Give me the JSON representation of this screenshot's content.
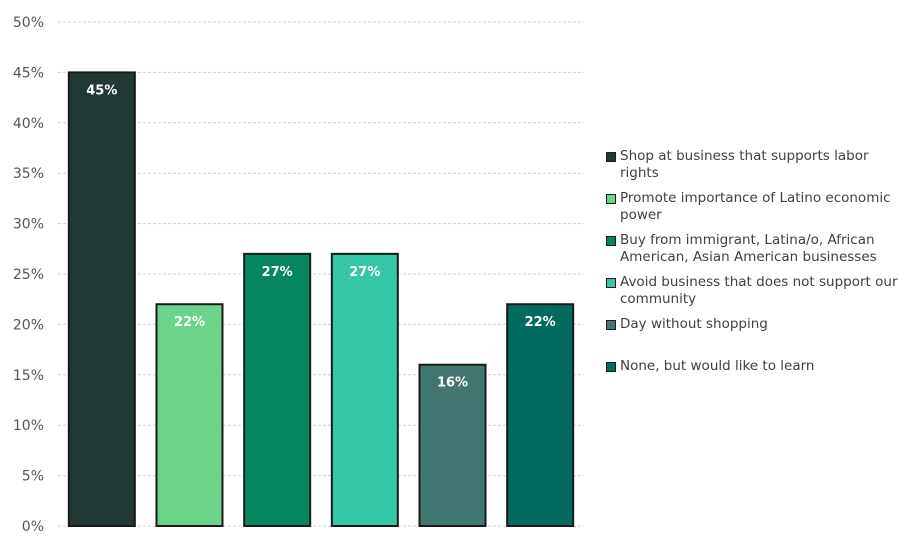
{
  "chart_data": {
    "type": "bar",
    "categories": [
      "Shop at business that supports labor rights",
      "Promote importance of Latino economic power",
      "Buy from immigrant, Latina/o, African American, Asian American businesses",
      "Avoid business that does not support our community",
      "Day without shopping",
      "None, but would like to learn"
    ],
    "values": [
      45,
      22,
      27,
      27,
      16,
      22
    ],
    "data_labels": [
      "45%",
      "22%",
      "27%",
      "27%",
      "16%",
      "22%"
    ],
    "colors": [
      "#213835",
      "#6cd38a",
      "#04865f",
      "#35c6a5",
      "#427771",
      "#036b5e"
    ],
    "label_colors": [
      "#ffffff",
      "#ffffff",
      "#ffffff",
      "#ffffff",
      "#ffffff",
      "#ffffff"
    ],
    "ylim": [
      0,
      50
    ],
    "yticks": [
      "0%",
      "5%",
      "10%",
      "15%",
      "20%",
      "25%",
      "30%",
      "35%",
      "40%",
      "45%",
      "50%"
    ],
    "title": "",
    "xlabel": "",
    "ylabel": "",
    "grid": true,
    "legend_position": "right"
  },
  "legend": {
    "items": [
      {
        "label": "Shop at business that supports labor rights",
        "color": "#213835"
      },
      {
        "label": "Promote importance of Latino economic power",
        "color": "#6cd38a"
      },
      {
        "label": "Buy from immigrant, Latina/o, African American, Asian American businesses",
        "color": "#04865f"
      },
      {
        "label": "Avoid business that does not support our community",
        "color": "#35c6a5"
      },
      {
        "label": "Day without shopping",
        "color": "#427771"
      },
      {
        "label": "None, but would like to learn",
        "color": "#036b5e"
      }
    ]
  }
}
